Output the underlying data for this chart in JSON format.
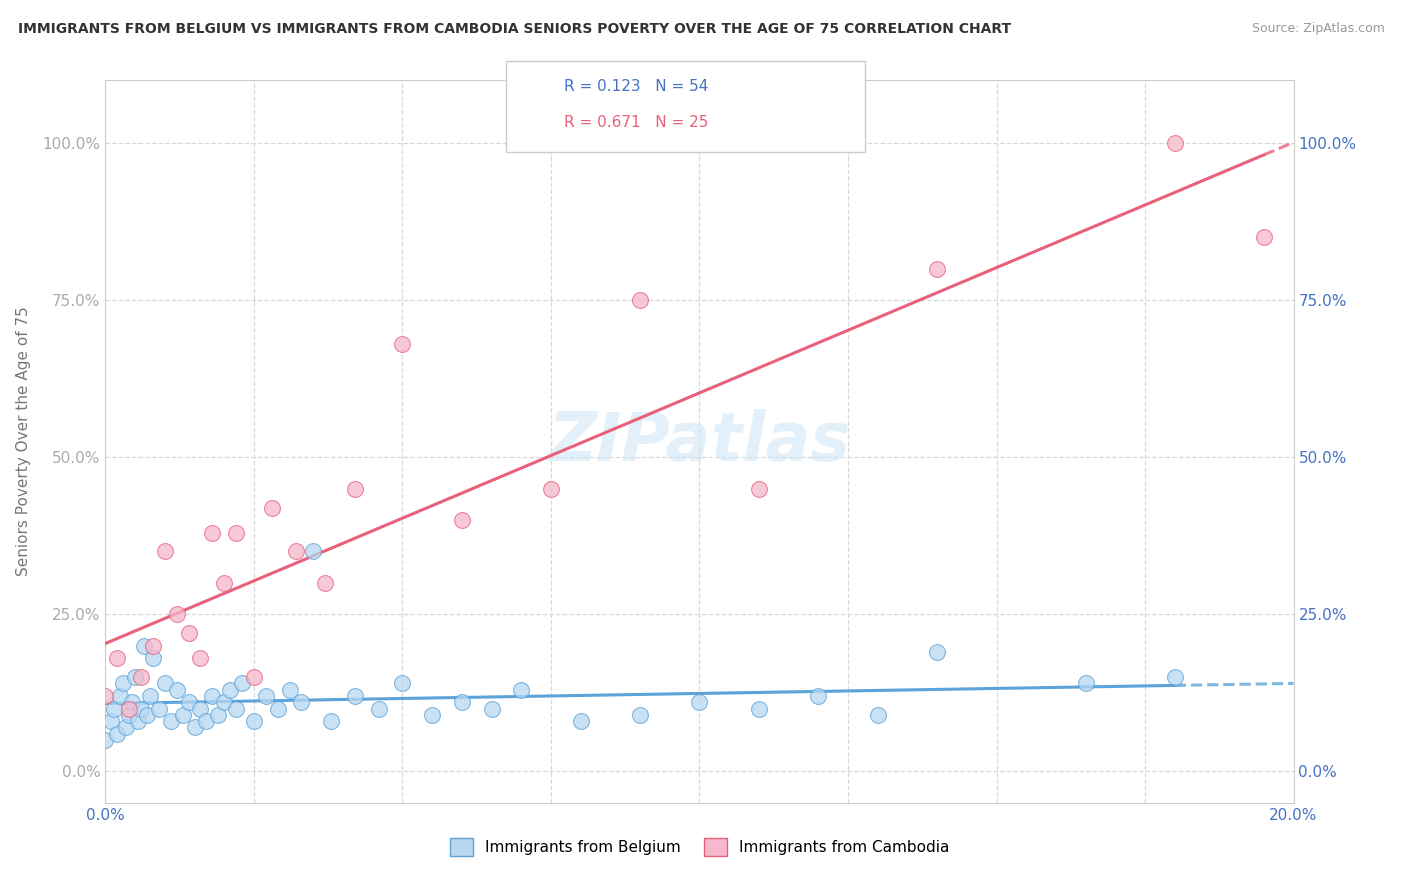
{
  "title": "IMMIGRANTS FROM BELGIUM VS IMMIGRANTS FROM CAMBODIA SENIORS POVERTY OVER THE AGE OF 75 CORRELATION CHART",
  "source": "Source: ZipAtlas.com",
  "ylabel": "Seniors Poverty Over the Age of 75",
  "watermark": "ZIPatlas",
  "legend_belgium_R": "R = 0.123",
  "legend_belgium_N": "N = 54",
  "legend_cambodia_R": "R = 0.671",
  "legend_cambodia_N": "N = 25",
  "color_belgium_fill": "#b8d8f2",
  "color_belgium_edge": "#5ba3d9",
  "color_cambodia_fill": "#f5b8cc",
  "color_cambodia_edge": "#e8607a",
  "color_belgium_line": "#5ba3d9",
  "color_cambodia_line": "#e8607a",
  "color_grid": "#d8d8d8",
  "color_ytick_left": "#aaaaaa",
  "color_ytick_right": "#4472c4",
  "color_xtick": "#4472c4",
  "belgium_x": [
    0.0,
    0.1,
    0.15,
    0.2,
    0.25,
    0.3,
    0.35,
    0.4,
    0.45,
    0.5,
    0.55,
    0.6,
    0.65,
    0.7,
    0.75,
    0.8,
    0.9,
    1.0,
    1.1,
    1.2,
    1.3,
    1.4,
    1.5,
    1.6,
    1.7,
    1.8,
    1.9,
    2.0,
    2.1,
    2.2,
    2.3,
    2.5,
    2.7,
    2.9,
    3.1,
    3.3,
    3.5,
    3.8,
    4.2,
    4.6,
    5.0,
    5.5,
    6.0,
    6.5,
    7.0,
    8.0,
    9.0,
    10.0,
    11.0,
    12.0,
    13.0,
    14.0,
    16.5,
    18.0
  ],
  "belgium_y": [
    5,
    8,
    10,
    6,
    12,
    14,
    7,
    9,
    11,
    15,
    8,
    10,
    20,
    9,
    12,
    18,
    10,
    14,
    8,
    13,
    9,
    11,
    7,
    10,
    8,
    12,
    9,
    11,
    13,
    10,
    14,
    8,
    12,
    10,
    13,
    11,
    35,
    8,
    12,
    10,
    14,
    9,
    11,
    10,
    13,
    8,
    9,
    11,
    10,
    12,
    9,
    19,
    14,
    15
  ],
  "cambodia_x": [
    0.0,
    0.2,
    0.4,
    0.6,
    0.8,
    1.0,
    1.2,
    1.4,
    1.6,
    1.8,
    2.0,
    2.2,
    2.5,
    2.8,
    3.2,
    3.7,
    4.2,
    5.0,
    6.0,
    7.5,
    9.0,
    11.0,
    14.0,
    18.0,
    19.5
  ],
  "cambodia_y": [
    12,
    18,
    10,
    15,
    20,
    35,
    25,
    22,
    18,
    38,
    30,
    38,
    15,
    42,
    35,
    30,
    45,
    68,
    40,
    45,
    75,
    45,
    80,
    100,
    85
  ],
  "ytick_vals": [
    0,
    25,
    50,
    75,
    100
  ],
  "ytick_labels": [
    "0.0%",
    "25.0%",
    "50.0%",
    "75.0%",
    "100.0%"
  ],
  "xlim": [
    0,
    20
  ],
  "ylim": [
    -5,
    110
  ]
}
